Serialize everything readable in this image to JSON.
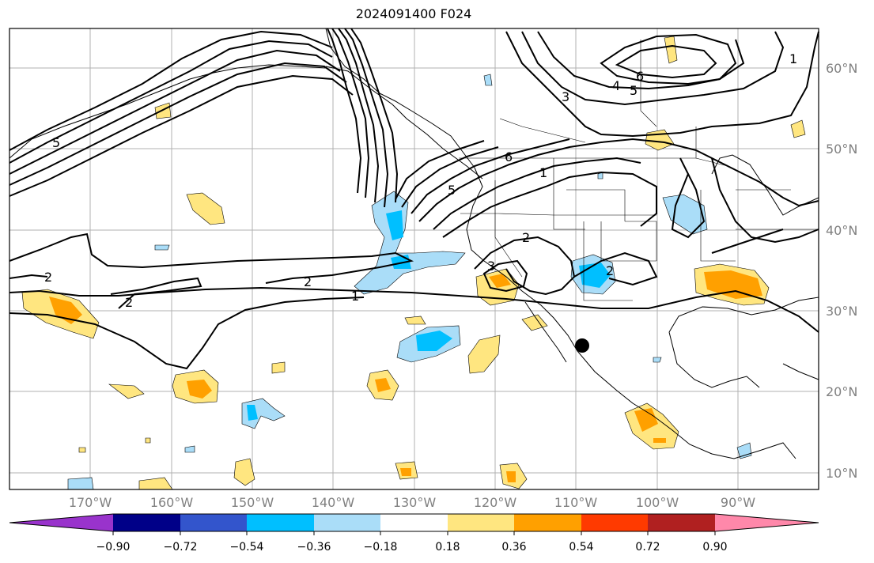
{
  "title": "2024091400 F024",
  "lat_labels": [
    "60°N",
    "50°N",
    "40°N",
    "30°N",
    "20°N",
    "10°N"
  ],
  "lon_labels": [
    "170°W",
    "160°W",
    "150°W",
    "140°W",
    "130°W",
    "120°W",
    "110°W",
    "100°W",
    "90°W"
  ],
  "contour_labels": [
    "1",
    "2",
    "3",
    "4",
    "5",
    "6"
  ],
  "colorbar": {
    "ticks": [
      "−0.90",
      "−0.72",
      "−0.54",
      "−0.36",
      "−0.18",
      "0.18",
      "0.36",
      "0.54",
      "0.72",
      "0.90"
    ],
    "colors": [
      "#9933cc",
      "#000088",
      "#3355cc",
      "#00bfff",
      "#aaddf8",
      "#ffffff",
      "#ffe680",
      "#ffa000",
      "#ff3a00",
      "#b02020",
      "#ff88aa"
    ]
  },
  "marker": {
    "label": "storm-position",
    "lat": 26,
    "lon": -109
  }
}
